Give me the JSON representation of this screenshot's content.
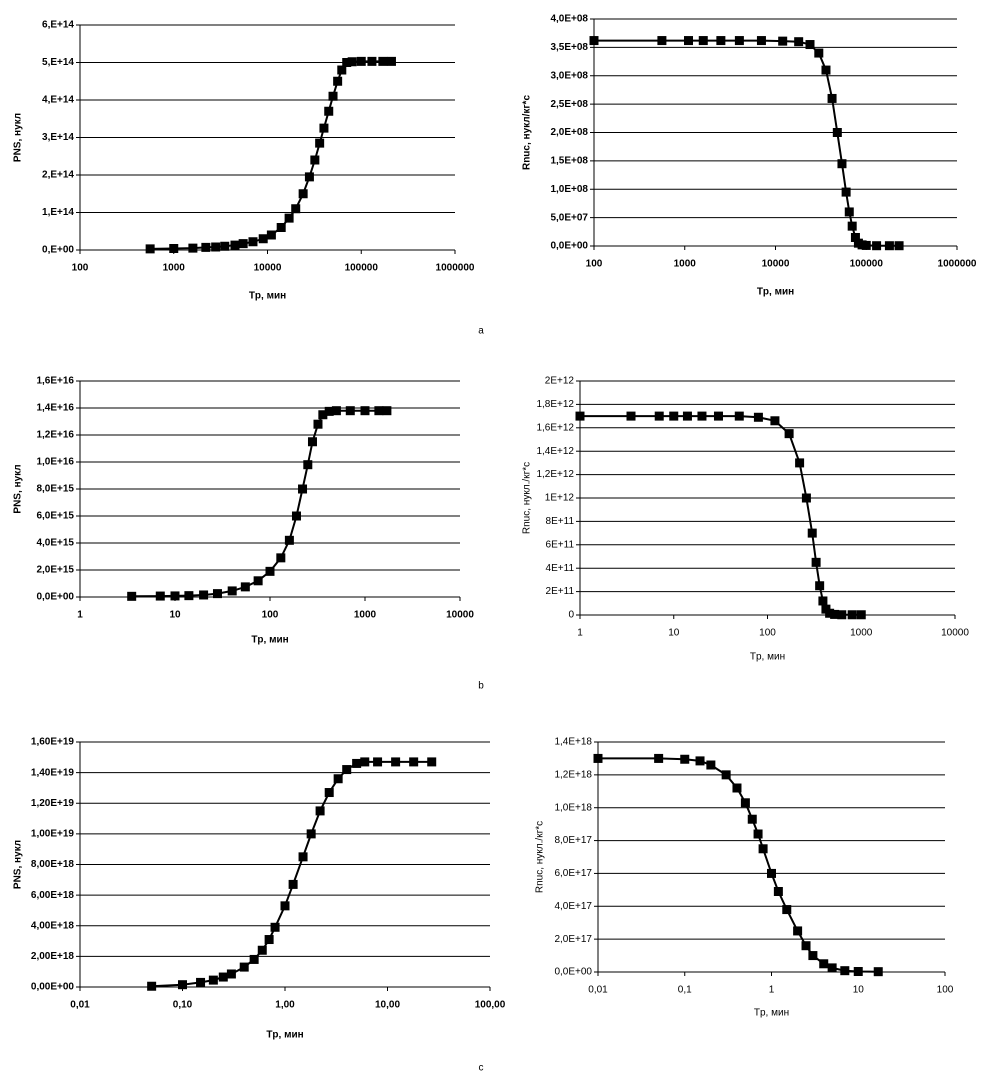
{
  "chart_data": [
    {
      "type": "line",
      "xscale": "log",
      "grid": "y",
      "marker": "square",
      "color": "#000000",
      "xlabel": "Tp, мин",
      "ylabel": "PNS, нукл",
      "xlim": [
        100,
        1000000
      ],
      "xticks": [
        100,
        1000,
        10000,
        100000,
        1000000
      ],
      "ylim": [
        0,
        600000000000000.0
      ],
      "yticks": [
        {
          "value": 0,
          "label": "0,E+00"
        },
        {
          "value": 100000000000000.0,
          "label": "1,E+14"
        },
        {
          "value": 200000000000000.0,
          "label": "2,E+14"
        },
        {
          "value": 300000000000000.0,
          "label": "3,E+14"
        },
        {
          "value": 400000000000000.0,
          "label": "4,E+14"
        },
        {
          "value": 500000000000000.0,
          "label": "5,E+14"
        },
        {
          "value": 600000000000000.0,
          "label": "6,E+14"
        }
      ],
      "x": [
        560,
        1000,
        1600,
        2200,
        2800,
        3500,
        4500,
        5500,
        7000,
        9000,
        11000,
        14000,
        17000,
        20000,
        24000,
        28000,
        32000,
        36000,
        40000,
        45000,
        50000,
        56000,
        62000,
        70000,
        80000,
        100000,
        130000,
        170000,
        210000
      ],
      "values": [
        3000000000000.0,
        4000000000000.0,
        5000000000000.0,
        7000000000000.0,
        8000000000000.0,
        10000000000000.0,
        13000000000000.0,
        17000000000000.0,
        22000000000000.0,
        30000000000000.0,
        40000000000000.0,
        60000000000000.0,
        85000000000000.0,
        110000000000000.0,
        150000000000000.0,
        195000000000000.0,
        240000000000000.0,
        285000000000000.0,
        325000000000000.0,
        370000000000000.0,
        410000000000000.0,
        450000000000000.0,
        480000000000000.0,
        500000000000000.0,
        502000000000000.0,
        503000000000000.0,
        503000000000000.0,
        503000000000000.0,
        503000000000000.0
      ]
    },
    {
      "type": "line",
      "xscale": "log",
      "grid": "y",
      "marker": "square",
      "color": "#000000",
      "xlabel": "Tp, мин",
      "ylabel": "Rnuc, нукл/кг*с",
      "xlim": [
        100,
        1000000
      ],
      "xticks": [
        100,
        1000,
        10000,
        100000,
        1000000
      ],
      "ylim": [
        0,
        400000000.0
      ],
      "yticks": [
        {
          "value": 0,
          "label": "0,0E+00"
        },
        {
          "value": 50000000.0,
          "label": "5,0E+07"
        },
        {
          "value": 100000000.0,
          "label": "1,0E+08"
        },
        {
          "value": 150000000.0,
          "label": "1,5E+08"
        },
        {
          "value": 200000000.0,
          "label": "2,0E+08"
        },
        {
          "value": 250000000.0,
          "label": "2,5E+08"
        },
        {
          "value": 300000000.0,
          "label": "3,0E+08"
        },
        {
          "value": 350000000.0,
          "label": "3,5E+08"
        },
        {
          "value": 400000000.0,
          "label": "4,0E+08"
        }
      ],
      "x": [
        100,
        560,
        1100,
        1600,
        2500,
        4000,
        7000,
        12000,
        18000,
        24000,
        30000,
        36000,
        42000,
        48000,
        54000,
        60000,
        65000,
        70000,
        76000,
        82000,
        90000,
        100000,
        130000,
        180000,
        230000
      ],
      "values": [
        362000000.0,
        362000000.0,
        362000000.0,
        362000000.0,
        362000000.0,
        362000000.0,
        362000000.0,
        361000000.0,
        360000000.0,
        355000000.0,
        340000000.0,
        310000000.0,
        260000000.0,
        200000000.0,
        145000000.0,
        95000000.0,
        60000000.0,
        35000000.0,
        15000000.0,
        5000000.0,
        2000000.0,
        1000000.0,
        500000.0,
        500000.0,
        500000.0
      ]
    },
    {
      "type": "line",
      "xscale": "log",
      "grid": "y",
      "marker": "square",
      "color": "#000000",
      "xlabel": "Tp, мин",
      "ylabel": "PNS, нукл",
      "xlim": [
        1,
        10000
      ],
      "xticks": [
        1,
        10,
        100,
        1000,
        10000
      ],
      "ylim": [
        0,
        1.6e+16
      ],
      "yticks": [
        {
          "value": 0,
          "label": "0,0E+00"
        },
        {
          "value": 2000000000000000.0,
          "label": "2,0E+15"
        },
        {
          "value": 4000000000000000.0,
          "label": "4,0E+15"
        },
        {
          "value": 6000000000000000.0,
          "label": "6,0E+15"
        },
        {
          "value": 8000000000000000.0,
          "label": "8,0E+15"
        },
        {
          "value": 1e+16,
          "label": "1,0E+16"
        },
        {
          "value": 1.2e+16,
          "label": "1,2E+16"
        },
        {
          "value": 1.4e+16,
          "label": "1,4E+16"
        },
        {
          "value": 1.6e+16,
          "label": "1,6E+16"
        }
      ],
      "x": [
        3.5,
        7,
        10,
        14,
        20,
        28,
        40,
        55,
        75,
        100,
        130,
        160,
        190,
        220,
        250,
        280,
        320,
        360,
        420,
        500,
        700,
        1000,
        1400,
        1700
      ],
      "values": [
        50000000000000.0,
        70000000000000.0,
        80000000000000.0,
        100000000000000.0,
        150000000000000.0,
        250000000000000.0,
        450000000000000.0,
        750000000000000.0,
        1200000000000000.0,
        1900000000000000.0,
        2900000000000000.0,
        4200000000000000.0,
        6000000000000000.0,
        8000000000000000.0,
        9800000000000000.0,
        1.15e+16,
        1.28e+16,
        1.35e+16,
        1.375e+16,
        1.38e+16,
        1.38e+16,
        1.38e+16,
        1.38e+16,
        1.38e+16
      ]
    },
    {
      "type": "line",
      "xscale": "log",
      "grid": "y",
      "marker": "square",
      "color": "#000000",
      "xlabel": "Tp, мин",
      "ylabel": "Rnuc, нукл./кг*с",
      "xlim": [
        1,
        10000
      ],
      "xticks": [
        1,
        10,
        100,
        1000,
        10000
      ],
      "ylim": [
        0,
        2000000000000.0
      ],
      "yticks": [
        0,
        {
          "value": 200000000000.0,
          "label": "2E+11"
        },
        {
          "value": 400000000000.0,
          "label": "4E+11"
        },
        {
          "value": 600000000000.0,
          "label": "6E+11"
        },
        {
          "value": 800000000000.0,
          "label": "8E+11"
        },
        {
          "value": 1000000000000.0,
          "label": "1E+12"
        },
        {
          "value": 1200000000000.0,
          "label": "1,2E+12"
        },
        {
          "value": 1400000000000.0,
          "label": "1,4E+12"
        },
        {
          "value": 1600000000000.0,
          "label": "1,6E+12"
        },
        {
          "value": 1800000000000.0,
          "label": "1,8E+12"
        },
        {
          "value": 2000000000000.0,
          "label": "2E+12"
        }
      ],
      "x": [
        1,
        3.5,
        7,
        10,
        14,
        20,
        30,
        50,
        80,
        120,
        170,
        220,
        260,
        300,
        330,
        360,
        390,
        420,
        460,
        520,
        620,
        800,
        1000
      ],
      "values": [
        1700000000000.0,
        1700000000000.0,
        1700000000000.0,
        1700000000000.0,
        1700000000000.0,
        1700000000000.0,
        1700000000000.0,
        1700000000000.0,
        1690000000000.0,
        1660000000000.0,
        1550000000000.0,
        1300000000000.0,
        1000000000000.0,
        700000000000.0,
        450000000000.0,
        250000000000.0,
        120000000000.0,
        50000000000.0,
        15000000000.0,
        5000000000.0,
        2000000000.0,
        2000000000.0,
        2000000000.0
      ]
    },
    {
      "type": "line",
      "xscale": "log",
      "grid": "y",
      "marker": "square",
      "color": "#000000",
      "xlabel": "Tp, мин",
      "ylabel": "PNS, нукл",
      "xlim": [
        0.01,
        100
      ],
      "xticks": [
        {
          "value": 0.01,
          "label": "0,01"
        },
        {
          "value": 0.1,
          "label": "0,10"
        },
        {
          "value": 1,
          "label": "1,00"
        },
        {
          "value": 10,
          "label": "10,00"
        },
        {
          "value": 100,
          "label": "100,00"
        }
      ],
      "ylim": [
        0,
        1.6e+19
      ],
      "yticks": [
        {
          "value": 0,
          "label": "0,00E+00"
        },
        {
          "value": 2e+18,
          "label": "2,00E+18"
        },
        {
          "value": 4e+18,
          "label": "4,00E+18"
        },
        {
          "value": 6e+18,
          "label": "6,00E+18"
        },
        {
          "value": 8e+18,
          "label": "8,00E+18"
        },
        {
          "value": 1e+19,
          "label": "1,00E+19"
        },
        {
          "value": 1.2e+19,
          "label": "1,20E+19"
        },
        {
          "value": 1.4e+19,
          "label": "1,40E+19"
        },
        {
          "value": 1.6e+19,
          "label": "1,60E+19"
        }
      ],
      "x": [
        0.05,
        0.1,
        0.15,
        0.2,
        0.25,
        0.3,
        0.4,
        0.5,
        0.6,
        0.7,
        0.8,
        1,
        1.2,
        1.5,
        1.8,
        2.2,
        2.7,
        3.3,
        4,
        5,
        6,
        8,
        12,
        18,
        27
      ],
      "values": [
        5e+16,
        1.5e+17,
        3e+17,
        4.5e+17,
        6.5e+17,
        8.5e+17,
        1.3e+18,
        1.8e+18,
        2.4e+18,
        3.1e+18,
        3.9e+18,
        5.3e+18,
        6.7e+18,
        8.5e+18,
        1e+19,
        1.15e+19,
        1.27e+19,
        1.36e+19,
        1.42e+19,
        1.46e+19,
        1.47e+19,
        1.47e+19,
        1.47e+19,
        1.47e+19,
        1.47e+19
      ]
    },
    {
      "type": "line",
      "xscale": "log",
      "grid": "y",
      "marker": "square",
      "color": "#000000",
      "xlabel": "Tp, мин",
      "ylabel": "Rnuc, нукл./кг*с",
      "xlim": [
        0.01,
        100
      ],
      "xticks": [
        {
          "value": 0.01,
          "label": "0,01"
        },
        {
          "value": 0.1,
          "label": "0,1"
        },
        1,
        10,
        100
      ],
      "ylim": [
        0,
        1.4e+18
      ],
      "yticks": [
        {
          "value": 0,
          "label": "0,0E+00"
        },
        {
          "value": 2e+17,
          "label": "2,0E+17"
        },
        {
          "value": 4e+17,
          "label": "4,0E+17"
        },
        {
          "value": 6e+17,
          "label": "6,0E+17"
        },
        {
          "value": 8e+17,
          "label": "8,0E+17"
        },
        {
          "value": 1e+18,
          "label": "1,0E+18"
        },
        {
          "value": 1.2e+18,
          "label": "1,2E+18"
        },
        {
          "value": 1.4e+18,
          "label": "1,4E+18"
        }
      ],
      "x": [
        0.01,
        0.05,
        0.1,
        0.15,
        0.2,
        0.3,
        0.4,
        0.5,
        0.6,
        0.7,
        0.8,
        1,
        1.2,
        1.5,
        2,
        2.5,
        3,
        4,
        5,
        7,
        10,
        17
      ],
      "values": [
        1.3e+18,
        1.3e+18,
        1.295e+18,
        1.285e+18,
        1.26e+18,
        1.2e+18,
        1.12e+18,
        1.03e+18,
        9.3e+17,
        8.4e+17,
        7.5e+17,
        6e+17,
        4.9e+17,
        3.8e+17,
        2.5e+17,
        1.6e+17,
        1e+17,
        5e+16,
        2.5e+16,
        8000000000000000.0,
        3000000000000000.0,
        2000000000000000.0
      ]
    }
  ],
  "captions": [
    "a",
    "b",
    "c"
  ]
}
